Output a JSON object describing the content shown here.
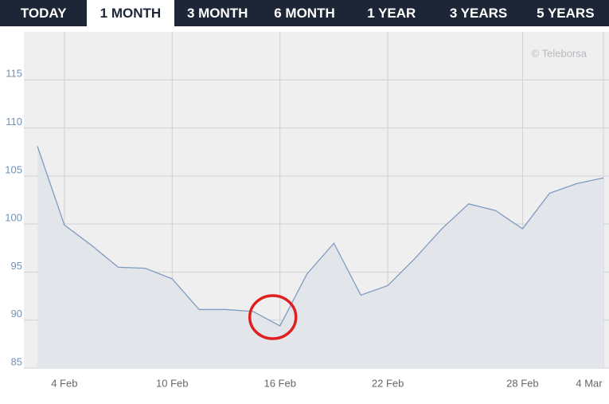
{
  "tabs": {
    "items": [
      "TODAY",
      "1 MONTH",
      "3 MONTH",
      "6 MONTH",
      "1 YEAR",
      "3 YEARS",
      "5 YEARS"
    ],
    "active": "1 MONTH"
  },
  "chart_data": {
    "type": "line",
    "watermark": "© Teleborsa",
    "categories": [
      null,
      "4 Feb",
      null,
      null,
      null,
      "10 Feb",
      null,
      null,
      null,
      "16 Feb",
      null,
      null,
      null,
      "22 Feb",
      null,
      null,
      null,
      null,
      "28 Feb",
      null,
      null,
      "4 Mar"
    ],
    "series": [
      {
        "color": "#7f9bbf",
        "values": [
          108.1,
          99.9,
          97.8,
          95.5,
          95.4,
          94.3,
          91.1,
          91.1,
          90.9,
          89.4,
          94.8,
          98.0,
          92.6,
          93.6,
          96.4,
          99.5,
          102.1,
          101.4,
          99.5,
          103.2,
          104.2,
          104.8
        ]
      }
    ],
    "fill": "#e2e5ea",
    "highlight_color": "#e02020",
    "ylim": [
      85,
      120
    ],
    "yticks": [
      85,
      90,
      95,
      100,
      105,
      110,
      115
    ],
    "grid": true
  }
}
